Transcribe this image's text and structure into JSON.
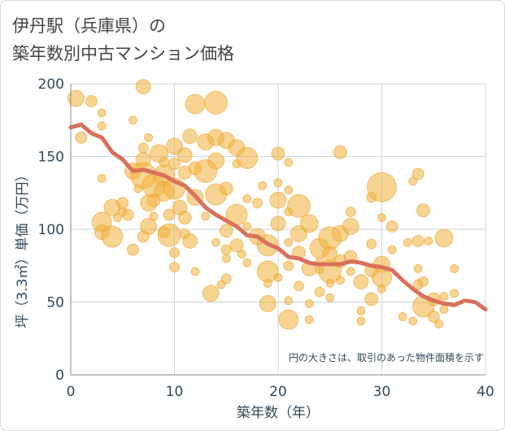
{
  "title": {
    "line1": "伊丹駅（兵庫県）の",
    "line2": "築年数別中古マンション価格"
  },
  "note": "円の大きさは、取引のあった物件面積を示す",
  "colors": {
    "bubble_fill": "#f2b13b",
    "bubble_stroke": "#e9a22a",
    "line": "#d9705c",
    "grid": "#c9d6e2",
    "axis_text": "#2f4a5a"
  },
  "chart_data": {
    "type": "scatter",
    "xlabel": "築年数（年）",
    "ylabel": "坪（3.3㎡）単価（万円）",
    "xlim": [
      0,
      40
    ],
    "ylim": [
      0,
      200
    ],
    "xticks": [
      0,
      10,
      20,
      30,
      40
    ],
    "yticks": [
      0,
      50,
      100,
      150,
      200
    ],
    "xtick_labels": [
      "0",
      "10",
      "20",
      "30",
      "40"
    ],
    "ytick_labels": [
      "0",
      "50",
      "100",
      "150",
      "200"
    ],
    "grid": true,
    "series": [
      {
        "kind": "bubble",
        "points": [
          [
            0.5,
            190,
            10
          ],
          [
            1,
            163,
            7
          ],
          [
            2,
            188,
            7
          ],
          [
            3,
            180,
            5
          ],
          [
            3,
            171,
            5
          ],
          [
            3,
            135,
            5
          ],
          [
            3,
            105,
            12
          ],
          [
            3,
            98,
            9
          ],
          [
            4,
            95,
            13
          ],
          [
            4,
            115,
            10
          ],
          [
            4.5,
            108,
            5
          ],
          [
            5,
            118,
            7
          ],
          [
            5,
            112,
            5
          ],
          [
            5.5,
            110,
            7
          ],
          [
            6,
            175,
            5
          ],
          [
            6,
            86,
            7
          ],
          [
            6,
            140,
            10
          ],
          [
            6.5,
            128,
            5
          ],
          [
            7,
            137,
            16
          ],
          [
            7,
            148,
            9
          ],
          [
            7,
            156,
            6
          ],
          [
            7,
            198,
            9
          ],
          [
            7.5,
            163,
            5
          ],
          [
            7.5,
            118,
            10
          ],
          [
            7.5,
            102,
            10
          ],
          [
            7,
            95,
            7
          ],
          [
            8,
            130,
            14
          ],
          [
            8,
            120,
            8
          ],
          [
            8,
            109,
            5
          ],
          [
            8.5,
            152,
            11
          ],
          [
            9,
            98,
            7
          ],
          [
            9,
            146,
            6
          ],
          [
            9,
            137,
            13
          ],
          [
            9,
            126,
            12
          ],
          [
            9.5,
            110,
            7
          ],
          [
            9.5,
            96,
            14
          ],
          [
            10,
            157,
            10
          ],
          [
            10,
            145,
            7
          ],
          [
            10,
            128,
            13
          ],
          [
            10,
            84,
            6
          ],
          [
            10,
            74,
            6
          ],
          [
            10.5,
            115,
            9
          ],
          [
            11,
            151,
            9
          ],
          [
            11,
            139,
            8
          ],
          [
            11,
            108,
            8
          ],
          [
            11,
            97,
            6
          ],
          [
            11.5,
            164,
            9
          ],
          [
            11.5,
            92,
            9
          ],
          [
            12,
            186,
            12
          ],
          [
            12,
            142,
            8
          ],
          [
            12,
            122,
            10
          ],
          [
            12,
            71,
            5
          ],
          [
            13,
            160,
            10
          ],
          [
            13,
            140,
            14
          ],
          [
            13,
            109,
            5
          ],
          [
            13.5,
            56,
            10
          ],
          [
            14,
            187,
            14
          ],
          [
            14,
            163,
            10
          ],
          [
            14,
            147,
            10
          ],
          [
            14,
            124,
            13
          ],
          [
            14,
            91,
            5
          ],
          [
            14.5,
            62,
            5
          ],
          [
            15,
            161,
            10
          ],
          [
            15,
            128,
            8
          ],
          [
            15,
            99,
            8
          ],
          [
            15,
            86,
            6
          ],
          [
            15,
            80,
            5
          ],
          [
            15,
            66,
            6
          ],
          [
            16,
            156,
            10
          ],
          [
            16,
            145,
            5
          ],
          [
            16,
            110,
            13
          ],
          [
            16,
            89,
            8
          ],
          [
            16.5,
            83,
            5
          ],
          [
            17,
            149,
            13
          ],
          [
            17,
            121,
            5
          ],
          [
            17,
            102,
            5
          ],
          [
            17,
            77,
            5
          ],
          [
            18,
            118,
            6
          ],
          [
            18,
            95,
            10
          ],
          [
            18.5,
            130,
            5
          ],
          [
            19,
            89,
            13
          ],
          [
            19,
            71,
            13
          ],
          [
            19,
            63,
            5
          ],
          [
            19,
            49,
            10
          ],
          [
            20,
            152,
            8
          ],
          [
            20,
            132,
            5
          ],
          [
            20,
            120,
            10
          ],
          [
            20,
            104,
            9
          ],
          [
            20,
            67,
            5
          ],
          [
            21,
            146,
            5
          ],
          [
            21,
            127,
            5
          ],
          [
            21,
            112,
            5
          ],
          [
            21,
            91,
            5
          ],
          [
            21,
            75,
            6
          ],
          [
            21,
            51,
            5
          ],
          [
            21,
            38,
            12
          ],
          [
            22,
            116,
            14
          ],
          [
            22,
            97,
            10
          ],
          [
            22,
            84,
            8
          ],
          [
            22,
            61,
            6
          ],
          [
            23,
            104,
            11
          ],
          [
            23,
            73,
            9
          ],
          [
            23,
            49,
            5
          ],
          [
            23,
            38,
            5
          ],
          [
            24,
            87,
            12
          ],
          [
            24,
            78,
            5
          ],
          [
            24,
            72,
            5
          ],
          [
            24,
            57,
            6
          ],
          [
            25,
            94,
            14
          ],
          [
            25,
            83,
            9
          ],
          [
            25,
            71,
            14
          ],
          [
            25,
            63,
            5
          ],
          [
            25,
            53,
            5
          ],
          [
            26,
            153,
            8
          ],
          [
            26,
            97,
            10
          ],
          [
            26,
            78,
            8
          ],
          [
            26,
            65,
            5
          ],
          [
            27,
            112,
            6
          ],
          [
            27,
            102,
            10
          ],
          [
            27,
            81,
            8
          ],
          [
            27,
            71,
            5
          ],
          [
            28,
            64,
            9
          ],
          [
            28,
            44,
            5
          ],
          [
            28,
            37,
            5
          ],
          [
            29,
            122,
            6
          ],
          [
            29,
            90,
            6
          ],
          [
            29,
            72,
            8
          ],
          [
            29,
            52,
            8
          ],
          [
            30,
            129,
            18
          ],
          [
            30,
            108,
            5
          ],
          [
            30,
            76,
            10
          ],
          [
            30,
            67,
            12
          ],
          [
            30,
            59,
            5
          ],
          [
            31,
            102,
            7
          ],
          [
            31,
            86,
            5
          ],
          [
            32,
            40,
            5
          ],
          [
            32.5,
            91,
            5
          ],
          [
            33,
            133,
            5
          ],
          [
            33,
            37,
            5
          ],
          [
            33.5,
            138,
            7
          ],
          [
            33.5,
            92,
            7
          ],
          [
            33.5,
            73,
            5
          ],
          [
            33.5,
            62,
            6
          ],
          [
            34,
            113,
            8
          ],
          [
            34,
            64,
            6
          ],
          [
            34,
            47,
            13
          ],
          [
            34.5,
            92,
            5
          ],
          [
            35,
            52,
            8
          ],
          [
            35,
            40,
            7
          ],
          [
            35.5,
            35,
            5
          ],
          [
            36,
            94,
            11
          ],
          [
            36,
            54,
            5
          ],
          [
            36,
            45,
            5
          ],
          [
            37,
            73,
            5
          ],
          [
            37,
            56,
            5
          ]
        ]
      },
      {
        "kind": "line",
        "x": [
          0,
          1,
          2,
          3,
          4,
          5,
          6,
          7,
          8,
          9,
          10,
          11,
          12,
          13,
          14,
          15,
          16,
          17,
          18,
          19,
          20,
          21,
          22,
          23,
          24,
          25,
          26,
          27,
          28,
          29,
          30,
          31,
          32,
          33,
          34,
          35,
          36,
          37,
          38,
          39,
          40
        ],
        "y": [
          170,
          172,
          166,
          163,
          153,
          148,
          140,
          141,
          139,
          137,
          133,
          130,
          123,
          115,
          110,
          106,
          102,
          96,
          95,
          90,
          87,
          81,
          80,
          77,
          76,
          76,
          76,
          78,
          77,
          75,
          74,
          72,
          65,
          59,
          54,
          51,
          49,
          48,
          51,
          50,
          45
        ]
      }
    ]
  }
}
